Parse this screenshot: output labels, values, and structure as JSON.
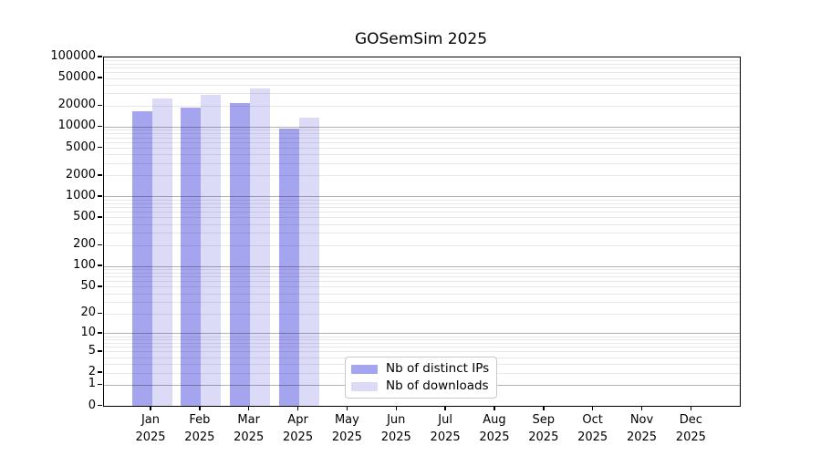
{
  "chart_data": {
    "type": "bar",
    "title": "GOSemSim 2025",
    "x_year": "2025",
    "categories": [
      "Jan",
      "Feb",
      "Mar",
      "Apr",
      "May",
      "Jun",
      "Jul",
      "Aug",
      "Sep",
      "Oct",
      "Nov",
      "Dec"
    ],
    "series": [
      {
        "name": "Nb of distinct IPs",
        "color": "#a5a5ef",
        "values": [
          17000,
          19200,
          22400,
          9700,
          null,
          null,
          null,
          null,
          null,
          null,
          null,
          null
        ]
      },
      {
        "name": "Nb of downloads",
        "color": "#dbdbf8",
        "values": [
          26000,
          29400,
          36000,
          13700,
          null,
          null,
          null,
          null,
          null,
          null,
          null,
          null
        ]
      }
    ],
    "yscale": "log1p",
    "ylim": [
      0,
      100000
    ],
    "yticks": [
      100000,
      50000,
      20000,
      10000,
      5000,
      2000,
      1000,
      500,
      200,
      100,
      50,
      20,
      10,
      5,
      2,
      1,
      0
    ],
    "grid": "horizontal major+minor, drawn over bars",
    "legend_position": "inside plot, lower middle-left"
  }
}
